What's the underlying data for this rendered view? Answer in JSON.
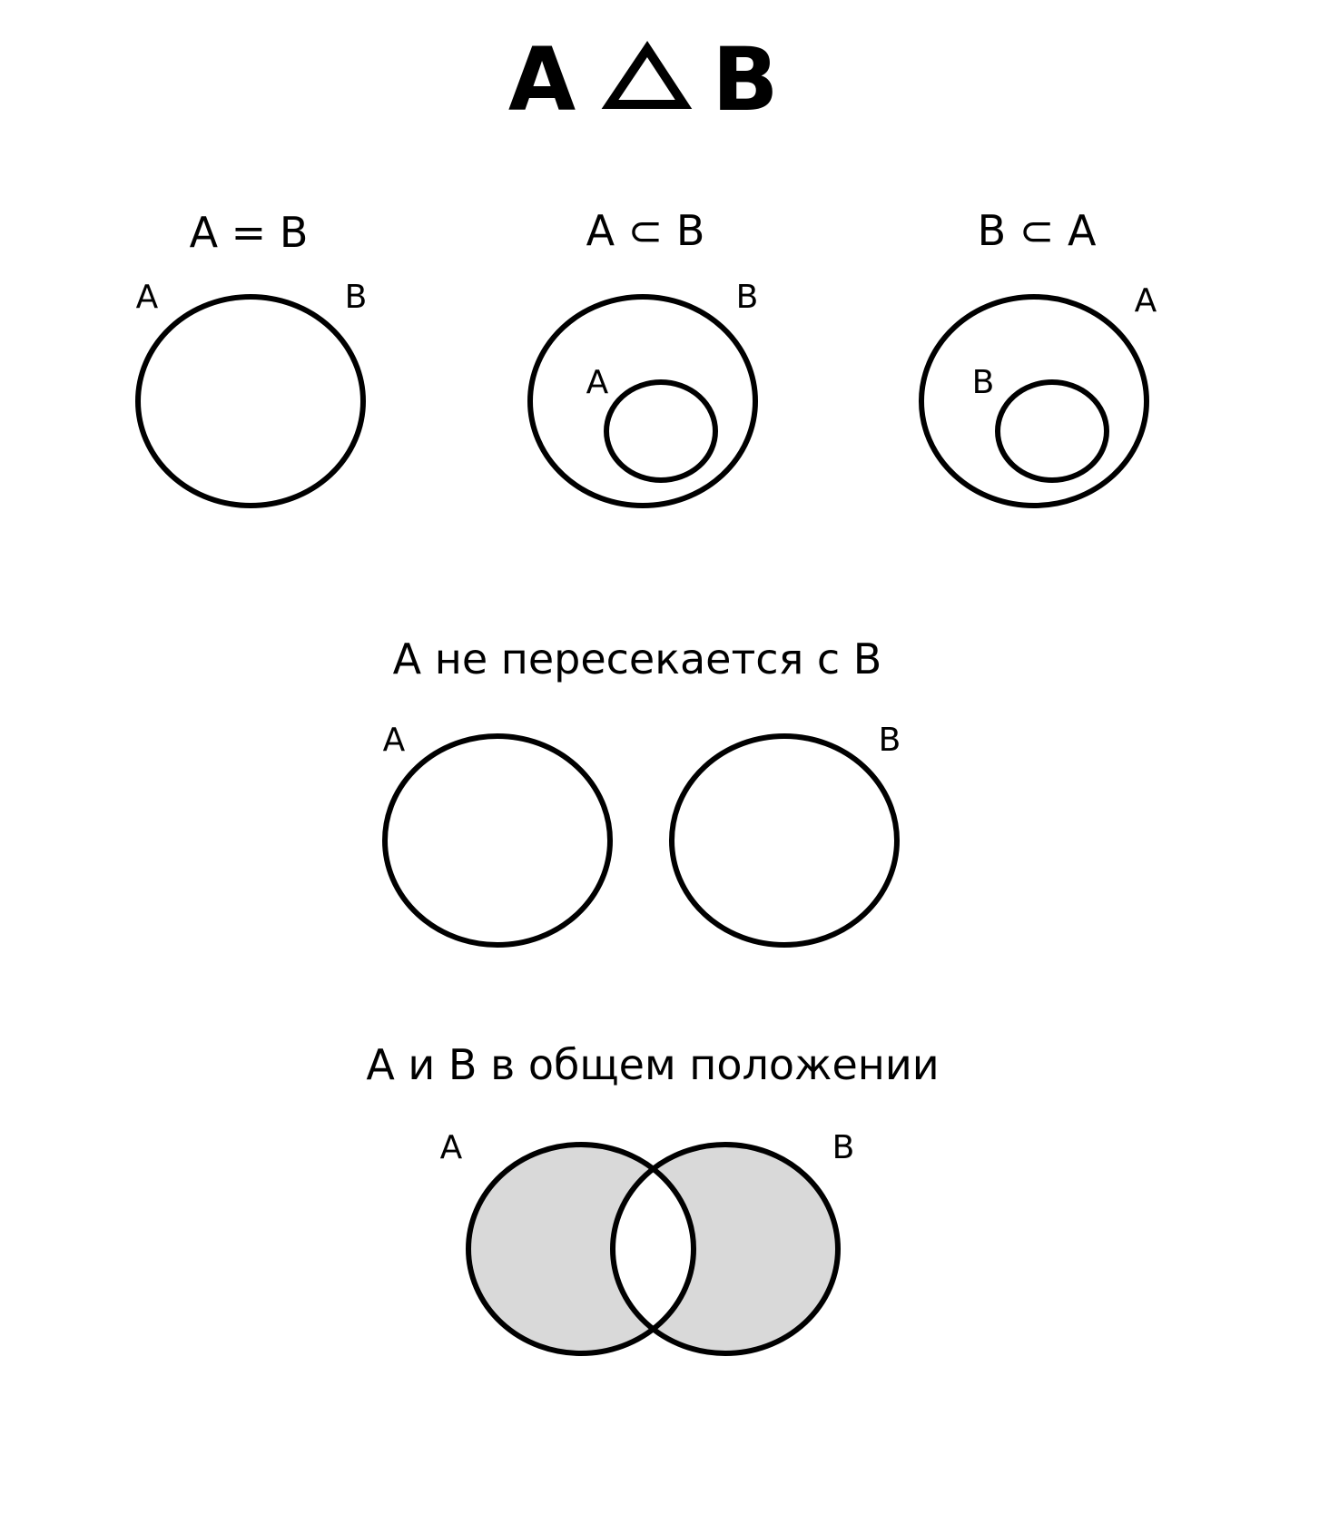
{
  "colors": {
    "shade": "#d9d9d9",
    "stroke": "#000000",
    "background": "#ffffff"
  },
  "title": {
    "left": "A",
    "symbol": "triangle-symbol",
    "right": "B"
  },
  "panels": {
    "equal": {
      "heading": "A = B",
      "label_a": "A",
      "label_b": "B"
    },
    "a_subset_b": {
      "heading": "A ⊂ B",
      "label_outer": "B",
      "label_inner": "A"
    },
    "b_subset_a": {
      "heading": "B ⊂ A",
      "label_outer": "A",
      "label_inner": "B"
    },
    "disjoint": {
      "heading": "A не пересекается с B",
      "label_a": "A",
      "label_b": "B"
    },
    "general": {
      "heading": "A и B в общем положении",
      "label_a": "A",
      "label_b": "B"
    }
  }
}
